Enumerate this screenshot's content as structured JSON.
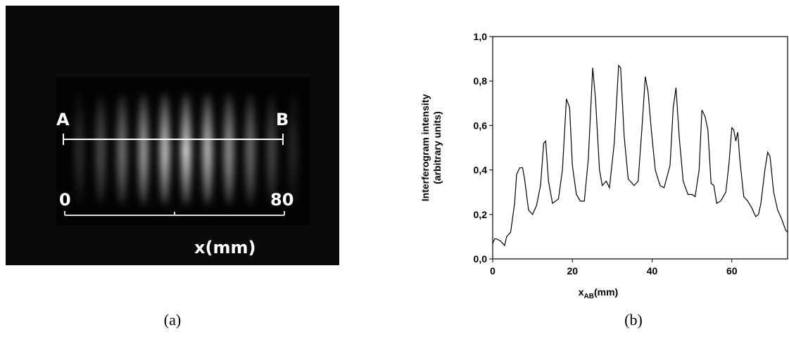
{
  "image": {
    "label_a": "A",
    "label_b": "B",
    "scale_start": "0",
    "scale_end": "80",
    "scale_unit": "x(mm)"
  },
  "captions": [
    "(a)",
    "(b)"
  ],
  "chart_data": {
    "type": "line",
    "ylabel": [
      "Interferogram intensity",
      "(arbitrary units)"
    ],
    "xlabel": {
      "base": "x",
      "sub": "AB",
      "unit": "(mm)"
    },
    "xlim": [
      0,
      74
    ],
    "xticks": [
      0,
      20,
      40,
      60
    ],
    "ylim": [
      0,
      1
    ],
    "yticks": [
      {
        "value": 0,
        "label": "0,0"
      },
      {
        "value": 0.2,
        "label": "0,2"
      },
      {
        "value": 0.4,
        "label": "0,4"
      },
      {
        "value": 0.6,
        "label": "0,6"
      },
      {
        "value": 0.8,
        "label": "0,8"
      },
      {
        "value": 1,
        "label": "1,0"
      }
    ],
    "color": "#000000",
    "x": [
      0,
      0.5,
      1,
      2,
      3,
      3.5,
      4.5,
      5.5,
      6,
      6.8,
      7.5,
      8,
      9,
      10,
      11,
      12,
      12.8,
      13.3,
      14,
      15,
      16.5,
      17.5,
      18.5,
      19.3,
      20,
      21,
      22,
      23,
      24,
      25.1,
      25.8,
      26.8,
      27.5,
      28.5,
      29.3,
      30.5,
      31.6,
      32.1,
      33,
      34,
      35.5,
      36.5,
      37.5,
      38.3,
      39,
      39.8,
      40.8,
      42,
      43,
      44.5,
      45.3,
      46,
      46.8,
      47.8,
      49,
      50,
      50.8,
      51.3,
      51.8,
      52.5,
      53.3,
      54,
      54.8,
      55.5,
      56.2,
      57.2,
      58.5,
      59.3,
      60,
      60.5,
      61,
      61.5,
      62,
      63,
      64,
      65,
      66,
      66.7,
      67.3,
      68.3,
      69,
      69.6,
      70.5,
      71.5,
      72.5,
      73.5,
      74
    ],
    "values": [
      0.07,
      0.09,
      0.09,
      0.08,
      0.06,
      0.1,
      0.12,
      0.25,
      0.38,
      0.41,
      0.41,
      0.36,
      0.22,
      0.2,
      0.24,
      0.33,
      0.52,
      0.53,
      0.35,
      0.25,
      0.27,
      0.4,
      0.72,
      0.68,
      0.42,
      0.29,
      0.26,
      0.26,
      0.45,
      0.86,
      0.72,
      0.4,
      0.33,
      0.35,
      0.32,
      0.52,
      0.87,
      0.86,
      0.55,
      0.36,
      0.33,
      0.35,
      0.6,
      0.82,
      0.75,
      0.58,
      0.4,
      0.33,
      0.32,
      0.42,
      0.68,
      0.77,
      0.55,
      0.35,
      0.29,
      0.29,
      0.28,
      0.34,
      0.4,
      0.67,
      0.64,
      0.58,
      0.34,
      0.33,
      0.25,
      0.26,
      0.3,
      0.43,
      0.59,
      0.58,
      0.53,
      0.57,
      0.45,
      0.28,
      0.26,
      0.23,
      0.19,
      0.2,
      0.25,
      0.4,
      0.48,
      0.46,
      0.3,
      0.22,
      0.18,
      0.13,
      0.12
    ]
  }
}
